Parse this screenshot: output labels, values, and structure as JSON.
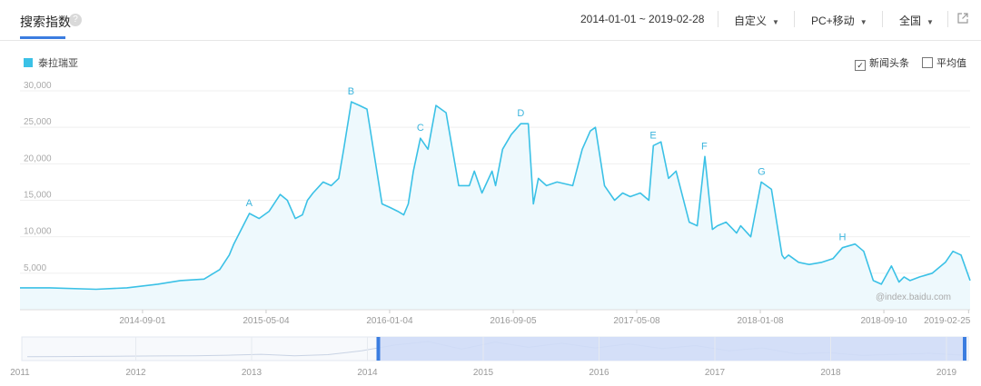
{
  "header": {
    "tab_title": "搜索指数",
    "help_icon": "question-circle-icon",
    "date_range": "2014-01-01 ~ 2019-02-28",
    "custom_label": "自定义",
    "device_label": "PC+移动",
    "region_label": "全国",
    "export_icon": "external-link-icon"
  },
  "options": {
    "news_label": "新闻头条",
    "news_checked": true,
    "average_label": "平均值",
    "average_checked": false
  },
  "watermark": "@index.baidu.com",
  "colors": {
    "line": "#3bc1e6",
    "fill": "#eef9fd",
    "accent": "#3b7de0"
  },
  "chart_data": {
    "type": "area",
    "series": [
      {
        "name": "泰拉瑞亚",
        "x": [
          "2014-01-01",
          "2014-03-01",
          "2014-06-01",
          "2014-08-01",
          "2014-10-01",
          "2014-11-15",
          "2015-01-01",
          "2015-02-01",
          "2015-02-20",
          "2015-03-01",
          "2015-04-01",
          "2015-04-20",
          "2015-05-10",
          "2015-06-01",
          "2015-06-15",
          "2015-07-01",
          "2015-07-15",
          "2015-07-25",
          "2015-08-05",
          "2015-08-25",
          "2015-09-10",
          "2015-09-25",
          "2015-10-05",
          "2015-10-20",
          "2015-11-05",
          "2015-11-20",
          "2015-12-20",
          "2016-01-05",
          "2016-01-20",
          "2016-02-01",
          "2016-02-10",
          "2016-02-20",
          "2016-03-05",
          "2016-03-20",
          "2016-04-05",
          "2016-04-25",
          "2016-05-20",
          "2016-06-10",
          "2016-06-20",
          "2016-07-05",
          "2016-07-25",
          "2016-08-01",
          "2016-08-15",
          "2016-09-01",
          "2016-09-20",
          "2016-10-05",
          "2016-10-15",
          "2016-10-25",
          "2016-11-10",
          "2016-12-01",
          "2017-01-01",
          "2017-01-20",
          "2017-02-05",
          "2017-02-15",
          "2017-03-05",
          "2017-03-25",
          "2017-04-10",
          "2017-04-25",
          "2017-05-15",
          "2017-06-01",
          "2017-06-10",
          "2017-06-25",
          "2017-07-10",
          "2017-07-25",
          "2017-08-20",
          "2017-09-05",
          "2017-09-20",
          "2017-10-05",
          "2017-10-15",
          "2017-11-01",
          "2017-11-15",
          "2017-11-22",
          "2017-11-30",
          "2017-12-20",
          "2018-01-10",
          "2018-01-30",
          "2018-02-20",
          "2018-02-25",
          "2018-03-05",
          "2018-03-25",
          "2018-04-15",
          "2018-05-10",
          "2018-06-01",
          "2018-06-20",
          "2018-07-15",
          "2018-08-01",
          "2018-08-20",
          "2018-09-05",
          "2018-09-25",
          "2018-10-10",
          "2018-10-20",
          "2018-11-01",
          "2018-11-20",
          "2018-12-15",
          "2019-01-10",
          "2019-01-25",
          "2019-02-10",
          "2019-02-28"
        ],
        "values": [
          3000,
          3000,
          2800,
          3000,
          3500,
          4000,
          4200,
          5500,
          7500,
          9000,
          13200,
          12500,
          13500,
          15800,
          15000,
          12500,
          13000,
          15000,
          16000,
          17500,
          17000,
          18000,
          22000,
          28500,
          28000,
          27500,
          14500,
          14000,
          13500,
          13000,
          14500,
          19000,
          23500,
          22000,
          28000,
          27000,
          17000,
          17000,
          19000,
          16000,
          19000,
          17000,
          22000,
          24000,
          25500,
          25500,
          14500,
          18000,
          17000,
          17500,
          17000,
          22000,
          24500,
          25000,
          17000,
          15000,
          16000,
          15500,
          16000,
          15000,
          22500,
          23000,
          18000,
          19000,
          12000,
          11500,
          21000,
          11000,
          11500,
          12000,
          11000,
          10500,
          11500,
          10000,
          17500,
          16500,
          7500,
          7000,
          7500,
          6500,
          6200,
          6500,
          7000,
          8500,
          9000,
          8000,
          4000,
          3500,
          6000,
          3800,
          4500,
          4000,
          4500,
          5000,
          6500,
          8000,
          7500,
          4000
        ]
      }
    ],
    "ylim": [
      0,
      30000
    ],
    "yticks": [
      "5,000",
      "10,000",
      "15,000",
      "20,000",
      "25,000",
      "30,000"
    ],
    "xticks": [
      "2014-09-01",
      "2015-05-04",
      "2016-01-04",
      "2016-09-05",
      "2017-05-08",
      "2018-01-08",
      "2018-09-10",
      "2019-02-25"
    ],
    "annotations": [
      {
        "label": "A",
        "x": "2015-04-01",
        "y": 13200
      },
      {
        "label": "B",
        "x": "2015-10-20",
        "y": 28500
      },
      {
        "label": "C",
        "x": "2016-03-05",
        "y": 23500
      },
      {
        "label": "D",
        "x": "2016-09-20",
        "y": 25500
      },
      {
        "label": "E",
        "x": "2017-06-10",
        "y": 22500
      },
      {
        "label": "F",
        "x": "2017-09-20",
        "y": 21000
      },
      {
        "label": "G",
        "x": "2018-01-10",
        "y": 17500
      },
      {
        "label": "H",
        "x": "2018-06-20",
        "y": 8500
      }
    ],
    "grid": true,
    "legend": "top-left"
  },
  "navigator": {
    "years": [
      "2011",
      "2012",
      "2013",
      "2014",
      "2015",
      "2016",
      "2017",
      "2018",
      "2019"
    ],
    "overview_values": [
      2000,
      2200,
      2500,
      3000,
      3200,
      3500,
      4500,
      6000,
      3500,
      5500,
      12000,
      22000,
      28000,
      15000,
      27000,
      18000,
      25000,
      17000,
      24000,
      16000,
      21000,
      12000,
      17000,
      7000,
      9000,
      4000,
      6000,
      8000,
      4500
    ]
  }
}
